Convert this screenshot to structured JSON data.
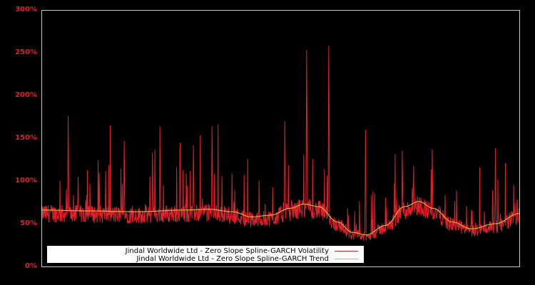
{
  "chart_data": {
    "type": "line",
    "title": "",
    "xlabel": "",
    "ylabel": "",
    "ylim": [
      0,
      300
    ],
    "y_ticks": [
      "0%",
      "50%",
      "100%",
      "150%",
      "200%",
      "250%",
      "300%"
    ],
    "grid": false,
    "legend_position": "lower-left inside",
    "series": [
      {
        "name": "Jindal Worldwide Ltd - Zero Slope Spline-GARCH Volatility",
        "color": "#e0202a",
        "description": "Daily conditional volatility (%), baseline ~45-70% with frequent spikes",
        "notable_peaks_pct": [
          {
            "x_frac": 0.056,
            "value": 176
          },
          {
            "x_frac": 0.173,
            "value": 147
          },
          {
            "x_frac": 0.232,
            "value": 133
          },
          {
            "x_frac": 0.318,
            "value": 142
          },
          {
            "x_frac": 0.357,
            "value": 164
          },
          {
            "x_frac": 0.509,
            "value": 170
          },
          {
            "x_frac": 0.555,
            "value": 253
          },
          {
            "x_frac": 0.601,
            "value": 258
          },
          {
            "x_frac": 0.678,
            "value": 160
          },
          {
            "x_frac": 0.755,
            "value": 135
          },
          {
            "x_frac": 0.818,
            "value": 137
          },
          {
            "x_frac": 0.95,
            "value": 138
          }
        ]
      },
      {
        "name": "Jindal Worldwide Ltd - Zero Slope Spline-GARCH Trend",
        "color": "#d4b040",
        "x_frac": [
          0.0,
          0.1,
          0.2,
          0.3,
          0.35,
          0.4,
          0.44,
          0.48,
          0.52,
          0.55,
          0.58,
          0.62,
          0.65,
          0.68,
          0.72,
          0.76,
          0.79,
          0.82,
          0.86,
          0.9,
          0.95,
          1.0
        ],
        "values": [
          66,
          65,
          64,
          66,
          67,
          64,
          58,
          60,
          68,
          73,
          70,
          52,
          40,
          37,
          48,
          70,
          76,
          68,
          52,
          44,
          50,
          62
        ]
      }
    ]
  },
  "legend": {
    "volatility_label": "Jindal Worldwide Ltd - Zero Slope Spline-GARCH Volatility",
    "trend_label": "Jindal Worldwide Ltd - Zero Slope Spline-GARCH Trend"
  },
  "colors": {
    "background": "#000000",
    "axis_frame": "#c8c8c8",
    "tick_label": "#e0202a",
    "volatility": "#e0202a",
    "trend": "#d4b040"
  }
}
